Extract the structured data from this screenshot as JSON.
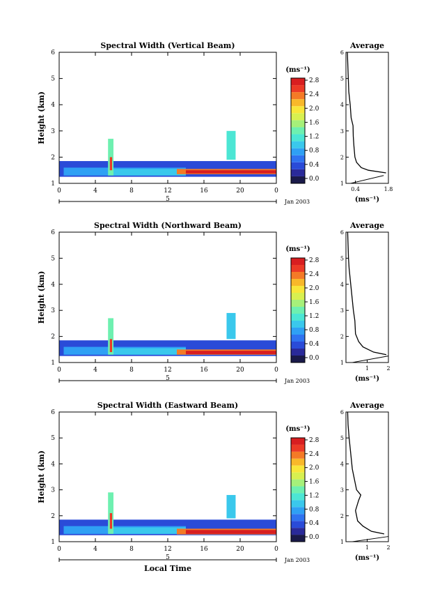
{
  "chart_data": [
    {
      "type": "heatmap",
      "title": "Spectral Width (Vertical Beam)",
      "xlabel": "",
      "ylabel": "Height (km)",
      "xlim": [
        0,
        24
      ],
      "ylim": [
        1,
        6
      ],
      "x_ticks": [
        "0",
        "4",
        "8",
        "12",
        "16",
        "20",
        "0"
      ],
      "y_ticks": [
        "1",
        "2",
        "3",
        "4",
        "5",
        "6"
      ],
      "date_bar_label": "5",
      "date_label": "Jan 2003",
      "colorbar": {
        "unit": "(ms⁻¹)",
        "ticks": [
          "0.0",
          "0.4",
          "0.8",
          "1.2",
          "1.6",
          "2.0",
          "2.4",
          "2.8"
        ]
      },
      "layers": [
        {
          "t0": 0,
          "t1": 24,
          "h0": 1.25,
          "h1": 1.85,
          "v": 0.45
        },
        {
          "t0": 0.5,
          "t1": 14,
          "h0": 1.3,
          "h1": 1.6,
          "v": 0.75
        },
        {
          "t0": 6,
          "t1": 14,
          "h0": 1.3,
          "h1": 1.55,
          "v": 1.05
        },
        {
          "t0": 13,
          "t1": 24,
          "h0": 1.35,
          "h1": 1.55,
          "v": 2.35
        },
        {
          "t0": 14,
          "t1": 24,
          "h0": 1.38,
          "h1": 1.5,
          "v": 2.75
        },
        {
          "t0": 5.4,
          "t1": 6.0,
          "h0": 1.3,
          "h1": 2.7,
          "v": 1.3
        },
        {
          "t0": 5.6,
          "t1": 5.85,
          "h0": 1.5,
          "h1": 2.0,
          "v": 2.5
        },
        {
          "t0": 18.5,
          "t1": 19.5,
          "h0": 1.9,
          "h1": 3.0,
          "v": 1.1
        }
      ],
      "average": {
        "title": "Average",
        "xlabel": "(ms⁻¹)",
        "xlim": [
          0,
          1.8
        ],
        "x_ticks": [
          "0.4",
          "1.8"
        ],
        "y_ticks": [
          "1",
          "2",
          "3",
          "4",
          "5",
          "6"
        ],
        "profile": [
          [
            1.4,
            1.7
          ],
          [
            1.5,
            0.95
          ],
          [
            1.6,
            0.65
          ],
          [
            1.8,
            0.45
          ],
          [
            2.0,
            0.38
          ],
          [
            2.4,
            0.34
          ],
          [
            2.8,
            0.31
          ],
          [
            3.2,
            0.3
          ],
          [
            3.5,
            0.22
          ],
          [
            4.0,
            0.18
          ],
          [
            4.5,
            0.12
          ],
          [
            5.0,
            0.1
          ],
          [
            5.5,
            0.08
          ],
          [
            6.0,
            0.06
          ]
        ],
        "low_line": [
          [
            1.0,
            0.2
          ],
          [
            1.3,
            1.6
          ]
        ]
      }
    },
    {
      "type": "heatmap",
      "title": "Spectral Width (Northward Beam)",
      "xlabel": "",
      "ylabel": "Height (km)",
      "xlim": [
        0,
        24
      ],
      "ylim": [
        1,
        6
      ],
      "x_ticks": [
        "0",
        "4",
        "8",
        "12",
        "16",
        "20",
        "0"
      ],
      "y_ticks": [
        "1",
        "2",
        "3",
        "4",
        "5",
        "6"
      ],
      "date_bar_label": "5",
      "date_label": "Jan 2003",
      "colorbar": {
        "unit": "(ms⁻¹)",
        "ticks": [
          "0.0",
          "0.4",
          "0.8",
          "1.2",
          "1.6",
          "2.0",
          "2.4",
          "2.8"
        ]
      },
      "layers": [
        {
          "t0": 0,
          "t1": 24,
          "h0": 1.25,
          "h1": 1.85,
          "v": 0.45
        },
        {
          "t0": 0.5,
          "t1": 14,
          "h0": 1.3,
          "h1": 1.6,
          "v": 0.75
        },
        {
          "t0": 6,
          "t1": 14,
          "h0": 1.3,
          "h1": 1.55,
          "v": 1.05
        },
        {
          "t0": 13,
          "t1": 24,
          "h0": 1.3,
          "h1": 1.5,
          "v": 2.3
        },
        {
          "t0": 14,
          "t1": 24,
          "h0": 1.32,
          "h1": 1.45,
          "v": 2.75
        },
        {
          "t0": 5.4,
          "t1": 6.0,
          "h0": 1.3,
          "h1": 2.7,
          "v": 1.3
        },
        {
          "t0": 5.6,
          "t1": 5.85,
          "h0": 1.4,
          "h1": 1.9,
          "v": 2.5
        },
        {
          "t0": 18.5,
          "t1": 19.5,
          "h0": 1.9,
          "h1": 2.9,
          "v": 1.0
        }
      ],
      "average": {
        "title": "Average",
        "xlabel": "(ms⁻¹)",
        "xlim": [
          0,
          2
        ],
        "x_ticks": [
          "1",
          "2"
        ],
        "y_ticks": [
          "1",
          "2",
          "3",
          "4",
          "5",
          "6"
        ],
        "profile": [
          [
            1.3,
            1.9
          ],
          [
            1.4,
            1.3
          ],
          [
            1.6,
            0.8
          ],
          [
            1.8,
            0.6
          ],
          [
            2.1,
            0.45
          ],
          [
            2.6,
            0.42
          ],
          [
            3.0,
            0.35
          ],
          [
            3.4,
            0.3
          ],
          [
            3.8,
            0.25
          ],
          [
            4.2,
            0.2
          ],
          [
            4.6,
            0.15
          ],
          [
            5.0,
            0.12
          ],
          [
            5.5,
            0.1
          ],
          [
            6.0,
            0.08
          ]
        ],
        "low_line": [
          [
            1.0,
            0.3
          ],
          [
            1.25,
            2.0
          ]
        ]
      }
    },
    {
      "type": "heatmap",
      "title": "Spectral Width (Eastward Beam)",
      "xlabel": "Local Time",
      "ylabel": "Height (km)",
      "xlim": [
        0,
        24
      ],
      "ylim": [
        1,
        6
      ],
      "x_ticks": [
        "0",
        "4",
        "8",
        "12",
        "16",
        "20",
        "0"
      ],
      "y_ticks": [
        "1",
        "2",
        "3",
        "4",
        "5",
        "6"
      ],
      "date_bar_label": "5",
      "date_label": "Jan 2003",
      "colorbar": {
        "unit": "(ms⁻¹)",
        "ticks": [
          "0.0",
          "0.4",
          "0.8",
          "1.2",
          "1.6",
          "2.0",
          "2.4",
          "2.8"
        ]
      },
      "layers": [
        {
          "t0": 0,
          "t1": 24,
          "h0": 1.25,
          "h1": 1.85,
          "v": 0.45
        },
        {
          "t0": 0.5,
          "t1": 14,
          "h0": 1.3,
          "h1": 1.6,
          "v": 0.75
        },
        {
          "t0": 6,
          "t1": 14,
          "h0": 1.3,
          "h1": 1.55,
          "v": 1.05
        },
        {
          "t0": 13,
          "t1": 24,
          "h0": 1.28,
          "h1": 1.5,
          "v": 2.3
        },
        {
          "t0": 14,
          "t1": 24,
          "h0": 1.3,
          "h1": 1.45,
          "v": 2.75
        },
        {
          "t0": 5.4,
          "t1": 6.0,
          "h0": 1.3,
          "h1": 2.9,
          "v": 1.3
        },
        {
          "t0": 5.6,
          "t1": 5.85,
          "h0": 1.5,
          "h1": 2.1,
          "v": 2.5
        },
        {
          "t0": 18.5,
          "t1": 19.5,
          "h0": 1.9,
          "h1": 2.8,
          "v": 1.0
        }
      ],
      "average": {
        "title": "Average",
        "xlabel": "(ms⁻¹)",
        "xlim": [
          0,
          2
        ],
        "x_ticks": [
          "1",
          "2"
        ],
        "y_ticks": [
          "1",
          "2",
          "3",
          "4",
          "5",
          "6"
        ],
        "profile": [
          [
            1.3,
            1.8
          ],
          [
            1.4,
            1.2
          ],
          [
            1.6,
            0.8
          ],
          [
            1.8,
            0.55
          ],
          [
            2.2,
            0.45
          ],
          [
            2.6,
            0.6
          ],
          [
            2.8,
            0.7
          ],
          [
            3.0,
            0.5
          ],
          [
            3.4,
            0.4
          ],
          [
            3.8,
            0.3
          ],
          [
            4.2,
            0.25
          ],
          [
            4.6,
            0.2
          ],
          [
            5.0,
            0.15
          ],
          [
            5.5,
            0.1
          ],
          [
            6.0,
            0.08
          ]
        ],
        "low_line": [
          [
            1.0,
            0.3
          ],
          [
            1.2,
            2.0
          ]
        ]
      }
    }
  ]
}
